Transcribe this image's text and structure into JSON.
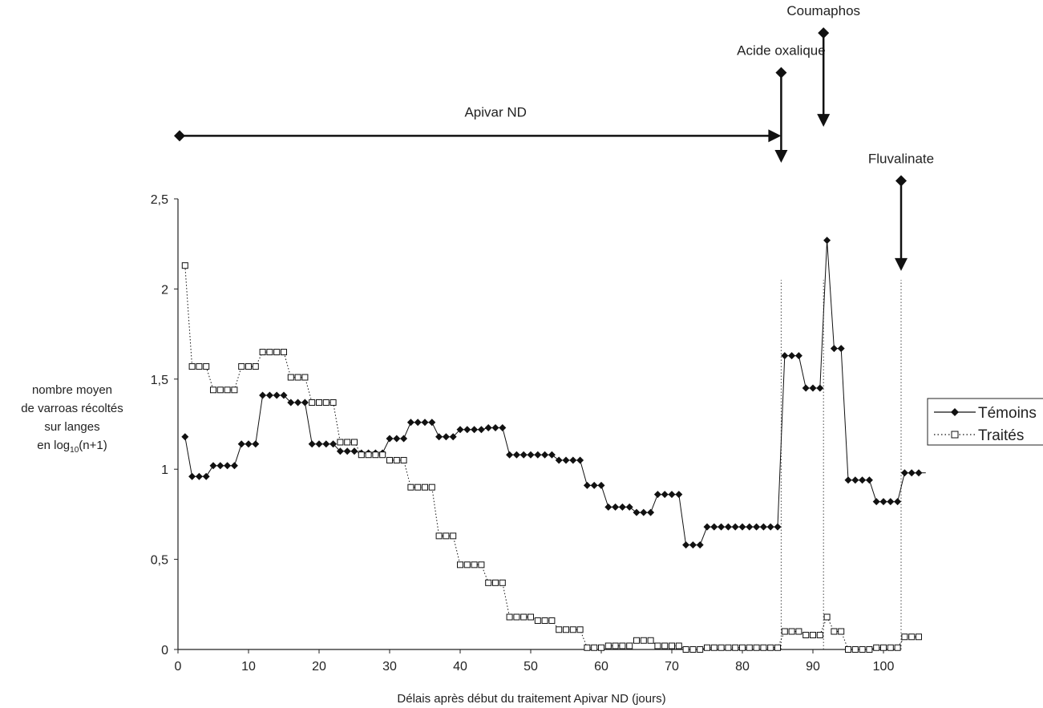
{
  "chart_data": {
    "type": "line",
    "xlabel": "Délais après début du traitement Apivar ND (jours)",
    "ylabel_lines": [
      "nombre moyen",
      "de varroas récoltés",
      "sur langes",
      "en log",
      "10",
      "(n+1)"
    ],
    "xlim": [
      0,
      106
    ],
    "ylim": [
      0,
      2.5
    ],
    "x_ticks": [
      0,
      10,
      20,
      30,
      40,
      50,
      60,
      70,
      80,
      90,
      100
    ],
    "x_tick_labels": [
      "0",
      "10",
      "20",
      "30",
      "40",
      "50",
      "60",
      "70",
      "80",
      "90",
      "100"
    ],
    "y_ticks": [
      0,
      0.5,
      1,
      1.5,
      2,
      2.5
    ],
    "y_tick_labels": [
      "0",
      "0,5",
      "1",
      "1,5",
      "2",
      "2,5"
    ],
    "legend_position": "right",
    "series": [
      {
        "name": "Témoins",
        "line_style": "solid",
        "marker": "filled-diamond",
        "color": "#111111",
        "x": [
          1,
          2,
          3,
          4,
          5,
          6,
          7,
          8,
          9,
          10,
          11,
          12,
          13,
          14,
          15,
          16,
          17,
          18,
          19,
          20,
          21,
          22,
          23,
          24,
          25,
          26,
          27,
          28,
          29,
          30,
          31,
          32,
          33,
          34,
          35,
          36,
          37,
          38,
          39,
          40,
          41,
          42,
          43,
          44,
          45,
          46,
          47,
          48,
          49,
          50,
          51,
          52,
          53,
          54,
          55,
          56,
          57,
          58,
          59,
          60,
          61,
          62,
          63,
          64,
          65,
          66,
          67,
          68,
          69,
          70,
          71,
          72,
          73,
          74,
          75,
          76,
          77,
          78,
          79,
          80,
          81,
          82,
          83,
          84,
          85,
          86,
          87,
          88,
          89,
          90,
          91,
          92,
          93,
          94,
          95,
          96,
          97,
          98,
          99,
          100,
          101,
          102,
          103,
          104,
          105
        ],
        "y": [
          1.18,
          0.96,
          0.96,
          0.96,
          1.02,
          1.02,
          1.02,
          1.02,
          1.14,
          1.14,
          1.14,
          1.41,
          1.41,
          1.41,
          1.41,
          1.37,
          1.37,
          1.37,
          1.14,
          1.14,
          1.14,
          1.14,
          1.1,
          1.1,
          1.1,
          1.09,
          1.09,
          1.09,
          1.09,
          1.17,
          1.17,
          1.17,
          1.26,
          1.26,
          1.26,
          1.26,
          1.18,
          1.18,
          1.18,
          1.22,
          1.22,
          1.22,
          1.22,
          1.23,
          1.23,
          1.23,
          1.08,
          1.08,
          1.08,
          1.08,
          1.08,
          1.08,
          1.08,
          1.05,
          1.05,
          1.05,
          1.05,
          0.91,
          0.91,
          0.91,
          0.79,
          0.79,
          0.79,
          0.79,
          0.76,
          0.76,
          0.76,
          0.86,
          0.86,
          0.86,
          0.86,
          0.58,
          0.58,
          0.58,
          0.68,
          0.68,
          0.68,
          0.68,
          0.68,
          0.68,
          0.68,
          0.68,
          0.68,
          0.68,
          0.68,
          1.63,
          1.63,
          1.63,
          1.45,
          1.45,
          1.45,
          2.27,
          1.67,
          1.67,
          0.94,
          0.94,
          0.94,
          0.94,
          0.82,
          0.82,
          0.82,
          0.82,
          0.98,
          0.98,
          0.98
        ],
        "end_dash_to": 106
      },
      {
        "name": "Traités",
        "line_style": "dotted",
        "marker": "open-square",
        "color": "#111111",
        "x": [
          1,
          2,
          3,
          4,
          5,
          6,
          7,
          8,
          9,
          10,
          11,
          12,
          13,
          14,
          15,
          16,
          17,
          18,
          19,
          20,
          21,
          22,
          23,
          24,
          25,
          26,
          27,
          28,
          29,
          30,
          31,
          32,
          33,
          34,
          35,
          36,
          37,
          38,
          39,
          40,
          41,
          42,
          43,
          44,
          45,
          46,
          47,
          48,
          49,
          50,
          51,
          52,
          53,
          54,
          55,
          56,
          57,
          58,
          59,
          60,
          61,
          62,
          63,
          64,
          65,
          66,
          67,
          68,
          69,
          70,
          71,
          72,
          73,
          74,
          75,
          76,
          77,
          78,
          79,
          80,
          81,
          82,
          83,
          84,
          85,
          86,
          87,
          88,
          89,
          90,
          91,
          92,
          93,
          94,
          95,
          96,
          97,
          98,
          99,
          100,
          101,
          102,
          103,
          104,
          105
        ],
        "y": [
          2.13,
          1.57,
          1.57,
          1.57,
          1.44,
          1.44,
          1.44,
          1.44,
          1.57,
          1.57,
          1.57,
          1.65,
          1.65,
          1.65,
          1.65,
          1.51,
          1.51,
          1.51,
          1.37,
          1.37,
          1.37,
          1.37,
          1.15,
          1.15,
          1.15,
          1.08,
          1.08,
          1.08,
          1.08,
          1.05,
          1.05,
          1.05,
          0.9,
          0.9,
          0.9,
          0.9,
          0.63,
          0.63,
          0.63,
          0.47,
          0.47,
          0.47,
          0.47,
          0.37,
          0.37,
          0.37,
          0.18,
          0.18,
          0.18,
          0.18,
          0.16,
          0.16,
          0.16,
          0.11,
          0.11,
          0.11,
          0.11,
          0.01,
          0.01,
          0.01,
          0.02,
          0.02,
          0.02,
          0.02,
          0.05,
          0.05,
          0.05,
          0.02,
          0.02,
          0.02,
          0.02,
          0.0,
          0.0,
          0.0,
          0.01,
          0.01,
          0.01,
          0.01,
          0.01,
          0.01,
          0.01,
          0.01,
          0.01,
          0.01,
          0.01,
          0.1,
          0.1,
          0.1,
          0.08,
          0.08,
          0.08,
          0.18,
          0.1,
          0.1,
          0.0,
          0.0,
          0.0,
          0.0,
          0.01,
          0.01,
          0.01,
          0.01,
          0.07,
          0.07,
          0.07
        ]
      }
    ],
    "treatment_lines_x": [
      85.5,
      91.5,
      102.5
    ],
    "annotations": [
      {
        "label": "Apivar ND",
        "kind": "horizontal-arrow",
        "x_start": 0,
        "x_end": 85.5,
        "level": 2.85
      },
      {
        "label": "Acide oxalique",
        "kind": "vertical-arrow",
        "x": 85.5,
        "level_top": 3.2,
        "level_bottom": 2.7
      },
      {
        "label": "Coumaphos",
        "kind": "vertical-arrow",
        "x": 91.5,
        "level_top": 3.42,
        "level_bottom": 2.9
      },
      {
        "label": "Fluvalinate",
        "kind": "vertical-arrow",
        "x": 102.5,
        "level_top": 2.6,
        "level_bottom": 2.1
      }
    ]
  }
}
